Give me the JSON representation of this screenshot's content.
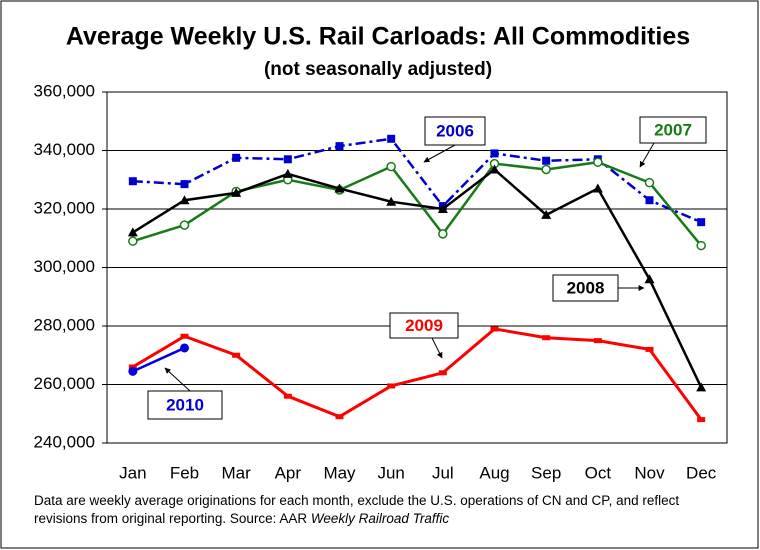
{
  "chart_data": {
    "type": "line",
    "title": "Average Weekly U.S. Rail Carloads: All Commodities",
    "subtitle": "(not seasonally adjusted)",
    "note": "Data are weekly average originations for each month, exclude the U.S. operations of CN and CP, and reflect revisions from original reporting.  Source: AAR",
    "note_italic": "Weekly Railroad Traffic",
    "categories": [
      "Jan",
      "Feb",
      "Mar",
      "Apr",
      "May",
      "Jun",
      "Jul",
      "Aug",
      "Sep",
      "Oct",
      "Nov",
      "Dec"
    ],
    "ylim": [
      240000,
      360000
    ],
    "yticks": [
      {
        "value": 240000,
        "label": "240,000"
      },
      {
        "value": 260000,
        "label": "260,000"
      },
      {
        "value": 280000,
        "label": "280,000"
      },
      {
        "value": 300000,
        "label": "300,000"
      },
      {
        "value": 320000,
        "label": "320,000"
      },
      {
        "value": 340000,
        "label": "340,000"
      },
      {
        "value": 360000,
        "label": "360,000"
      }
    ],
    "grid": true,
    "series": [
      {
        "name": "2006",
        "color": "#0000cc",
        "marker": "square",
        "dash": "dashdot",
        "values": [
          329500,
          328500,
          337500,
          337000,
          341500,
          344000,
          321000,
          339000,
          336500,
          337000,
          323000,
          315500
        ]
      },
      {
        "name": "2007",
        "color": "#1a7a1a",
        "marker": "circle-open",
        "dash": "solid",
        "values": [
          309000,
          314500,
          326000,
          330000,
          326500,
          334500,
          311500,
          335500,
          333500,
          336000,
          329000,
          307500
        ]
      },
      {
        "name": "2008",
        "color": "#000000",
        "marker": "triangle",
        "dash": "solid",
        "values": [
          312000,
          323000,
          325500,
          332000,
          327000,
          322500,
          320000,
          333500,
          318000,
          327000,
          296000,
          259000
        ]
      },
      {
        "name": "2009",
        "color": "#ff0000",
        "marker": "dash",
        "dash": "solid",
        "values": [
          266000,
          276500,
          270000,
          256000,
          249000,
          259500,
          264000,
          279000,
          276000,
          275000,
          272000,
          248000
        ]
      },
      {
        "name": "2010",
        "color": "#0000dd",
        "marker": "circle",
        "dash": "solid",
        "values": [
          264500,
          272500,
          null,
          null,
          null,
          null,
          null,
          null,
          null,
          null,
          null,
          null
        ]
      }
    ]
  }
}
